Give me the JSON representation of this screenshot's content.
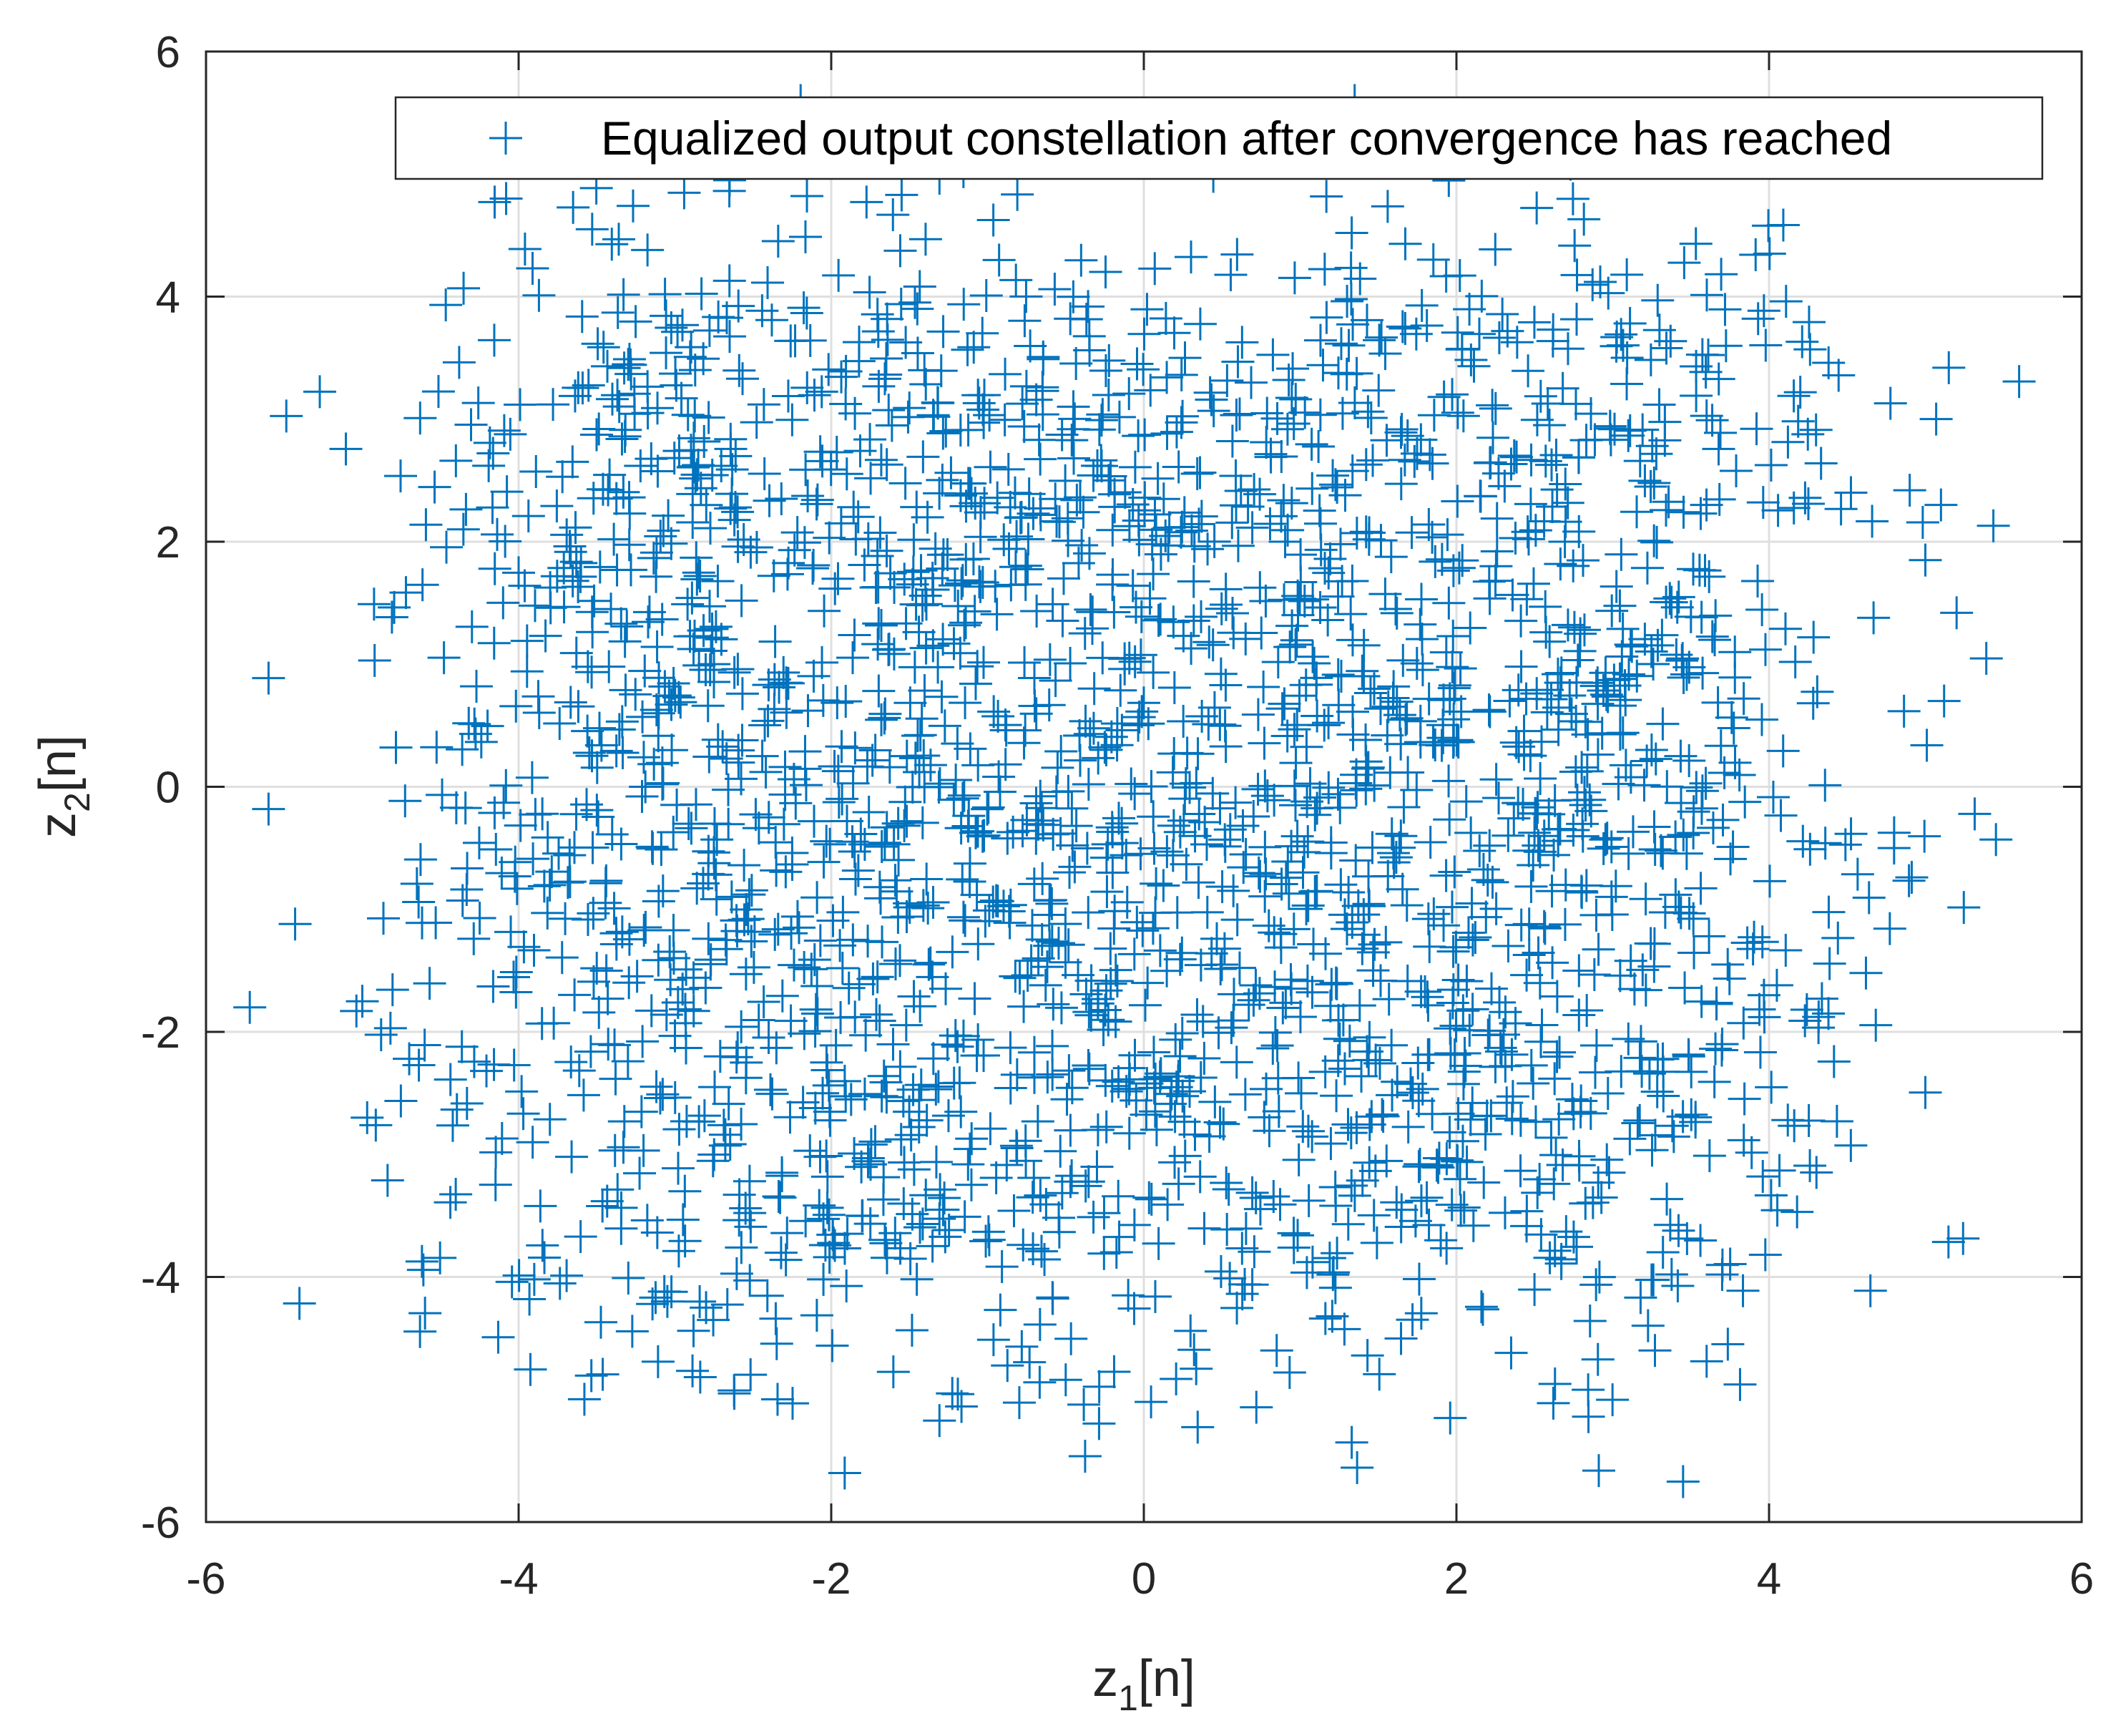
{
  "chart_data": {
    "type": "scatter",
    "title": "",
    "xlabel": {
      "base": "z",
      "sub": "1",
      "suffix": "[n]"
    },
    "ylabel": {
      "base": "z",
      "sub": "2",
      "suffix": "[n]"
    },
    "xlim": [
      -6,
      6
    ],
    "ylim": [
      -6,
      6
    ],
    "xticks": [
      -6,
      -4,
      -2,
      0,
      2,
      4,
      6
    ],
    "yticks": [
      -6,
      -4,
      -2,
      0,
      2,
      4,
      6
    ],
    "xtick_labels": [
      "-6",
      "-4",
      "-2",
      "0",
      "2",
      "4",
      "6"
    ],
    "ytick_labels": [
      "-6",
      "-4",
      "-2",
      "0",
      "2",
      "4",
      "6"
    ],
    "grid": true,
    "legend": {
      "label": "Equalized output constellation after convergence has reached",
      "position": "top-right"
    },
    "colors": {
      "marker": "#0072BD",
      "grid": "#dfdfdf",
      "axis": "#262626"
    },
    "marker": "+",
    "series": [
      {
        "name": "Equalized output constellation after convergence has reached",
        "sampling": {
          "count": 2600,
          "centers": [
            -3,
            -1,
            1,
            3
          ],
          "spread": 0.95,
          "seed": 20240611,
          "bounds": [
            -5.6,
            5.6
          ]
        },
        "points": [
          [
            -4.08,
            4.8
          ],
          [
            -2.65,
            4.95
          ],
          [
            1.33,
            4.52
          ],
          [
            2.92,
            4.12
          ],
          [
            3.93,
            3.82
          ],
          [
            5.15,
            3.42
          ],
          [
            4.2,
            3.22
          ],
          [
            4.9,
            2.42
          ],
          [
            5.1,
            2.3
          ],
          [
            5.2,
            1.42
          ],
          [
            5.12,
            0.7
          ],
          [
            4.8,
            -0.5
          ],
          [
            4.36,
            -0.46
          ],
          [
            4.12,
            -2.72
          ],
          [
            3.96,
            -3.18
          ],
          [
            3.45,
            -5.67
          ],
          [
            1.33,
            -5.35
          ],
          [
            2.62,
            -5.03
          ],
          [
            -2.62,
            -4.95
          ],
          [
            -3.9,
            -4.02
          ],
          [
            -2.05,
            -4.02
          ],
          [
            -5.72,
            -1.8
          ],
          [
            -5.43,
            -1.12
          ],
          [
            -4.27,
            0.82
          ],
          [
            -3.78,
            3.12
          ],
          [
            -3.72,
            2.53
          ],
          [
            -3.87,
            4.01
          ],
          [
            -5.0,
            -1.75
          ],
          [
            3.27,
            -4.6
          ],
          [
            2.35,
            -4.62
          ],
          [
            0.85,
            -4.6
          ],
          [
            -0.1,
            -4.15
          ],
          [
            3.7,
            -3.98
          ],
          [
            4.62,
            -1.52
          ],
          [
            4.38,
            -1.85
          ],
          [
            4.05,
            -1.62
          ],
          [
            5.0,
            1.85
          ],
          [
            -4.64,
            -0.94
          ],
          [
            -4.82,
            -1.97
          ],
          [
            -4.7,
            -2.22
          ]
        ]
      }
    ]
  }
}
